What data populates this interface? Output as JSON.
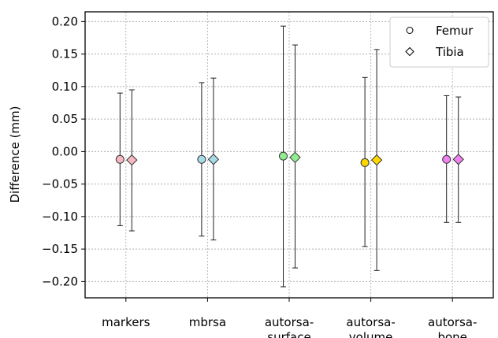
{
  "chart_data": {
    "type": "scatter",
    "title": "",
    "xlabel": "",
    "ylabel": "Difference (mm)",
    "ylim": [
      -0.225,
      0.215
    ],
    "yticks": [
      0.2,
      0.15,
      0.1,
      0.05,
      0.0,
      -0.05,
      -0.1,
      -0.15,
      -0.2
    ],
    "ytick_labels": [
      "0.20",
      "0.15",
      "0.10",
      "0.05",
      "0.00",
      "−0.05",
      "−0.10",
      "−0.15",
      "−0.20"
    ],
    "grid": true,
    "legend_position": "top-right",
    "categories": [
      {
        "lines": [
          "markers"
        ]
      },
      {
        "lines": [
          "mbrsa"
        ]
      },
      {
        "lines": [
          "autorsa-",
          "surface"
        ]
      },
      {
        "lines": [
          "autorsa-",
          "volume"
        ]
      },
      {
        "lines": [
          "autorsa-",
          "bone"
        ]
      }
    ],
    "colors": [
      "#f4b7c3",
      "#a9dbe6",
      "#90ee90",
      "#ffd700",
      "#ee82ee"
    ],
    "series": [
      {
        "name": "Femur",
        "marker": "circle",
        "values": [
          -0.012,
          -0.012,
          -0.007,
          -0.017,
          -0.012
        ],
        "lower": [
          -0.114,
          -0.13,
          -0.208,
          -0.146,
          -0.109
        ],
        "upper": [
          0.09,
          0.106,
          0.193,
          0.114,
          0.086
        ]
      },
      {
        "name": "Tibia",
        "marker": "diamond",
        "values": [
          -0.013,
          -0.012,
          -0.009,
          -0.013,
          -0.012
        ],
        "lower": [
          -0.122,
          -0.136,
          -0.179,
          -0.183,
          -0.109
        ],
        "upper": [
          0.095,
          0.113,
          0.164,
          0.157,
          0.084
        ]
      }
    ]
  }
}
